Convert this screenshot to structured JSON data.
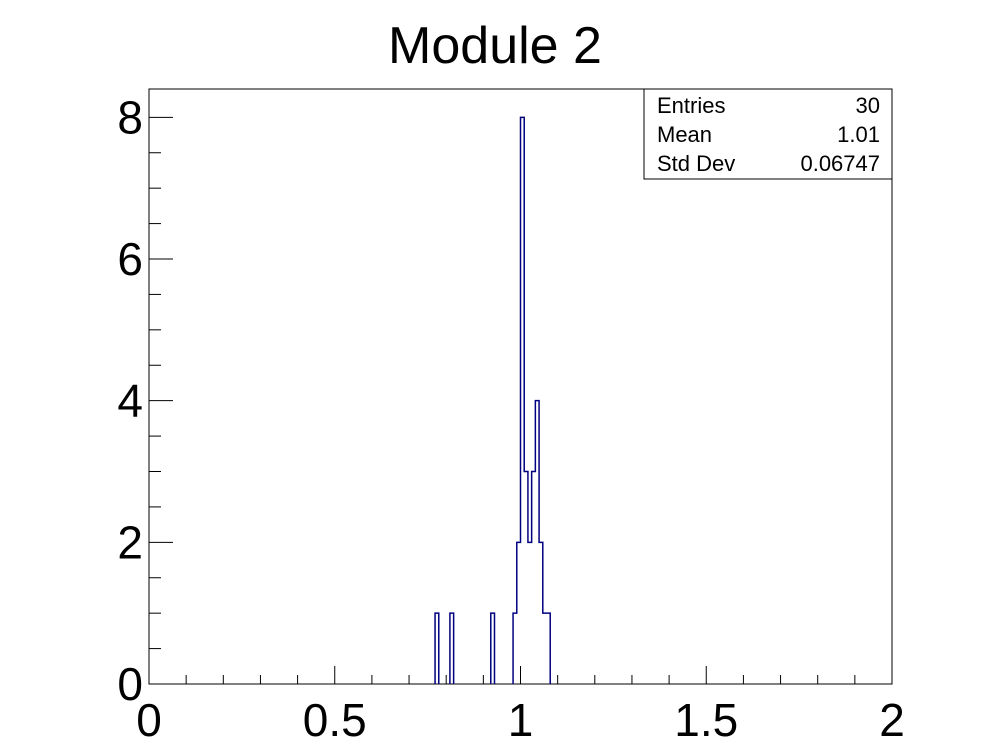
{
  "chart_data": {
    "type": "histogram",
    "title": "Module 2",
    "xlabel": "",
    "ylabel": "",
    "xlim": [
      0,
      2
    ],
    "ylim": [
      0,
      8.4
    ],
    "bin_width": 0.01,
    "x_ticks": [
      {
        "value": 0,
        "label": "0"
      },
      {
        "value": 0.5,
        "label": "0.5"
      },
      {
        "value": 1,
        "label": "1"
      },
      {
        "value": 1.5,
        "label": "1.5"
      },
      {
        "value": 2,
        "label": "2"
      }
    ],
    "y_ticks": [
      {
        "value": 0,
        "label": "0"
      },
      {
        "value": 2,
        "label": "2"
      },
      {
        "value": 4,
        "label": "4"
      },
      {
        "value": 6,
        "label": "6"
      },
      {
        "value": 8,
        "label": "8"
      }
    ],
    "bins": [
      {
        "x": 0.77,
        "count": 1
      },
      {
        "x": 0.81,
        "count": 1
      },
      {
        "x": 0.92,
        "count": 1
      },
      {
        "x": 0.98,
        "count": 1
      },
      {
        "x": 0.99,
        "count": 2
      },
      {
        "x": 1.0,
        "count": 8
      },
      {
        "x": 1.01,
        "count": 3
      },
      {
        "x": 1.02,
        "count": 2
      },
      {
        "x": 1.03,
        "count": 3
      },
      {
        "x": 1.04,
        "count": 4
      },
      {
        "x": 1.05,
        "count": 2
      },
      {
        "x": 1.06,
        "count": 1
      },
      {
        "x": 1.07,
        "count": 1
      }
    ],
    "line_color": "#000080",
    "grid": false,
    "legend": "none",
    "stats_box": {
      "placement": "top-right",
      "rows": [
        {
          "label": "Entries",
          "value": "30"
        },
        {
          "label": "Mean",
          "value": "1.01"
        },
        {
          "label": "Std Dev",
          "value": "0.06747"
        }
      ]
    }
  }
}
